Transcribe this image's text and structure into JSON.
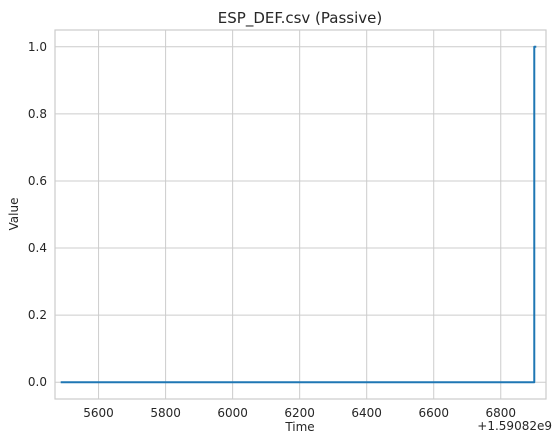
{
  "chart_data": {
    "type": "line",
    "title": "ESP_DEF.csv (Passive)",
    "xlabel": "Time",
    "ylabel": "Value",
    "x_offset_label": "+1.59082e9",
    "xlim": [
      5470,
      6935
    ],
    "ylim": [
      -0.05,
      1.05
    ],
    "xticks": [
      5600,
      5800,
      6000,
      6200,
      6400,
      6600,
      6800
    ],
    "xtick_labels": [
      "5600",
      "5800",
      "6000",
      "6200",
      "6400",
      "6600",
      "6800"
    ],
    "yticks": [
      0.0,
      0.2,
      0.4,
      0.6,
      0.8,
      1.0
    ],
    "ytick_labels": [
      "0.0",
      "0.2",
      "0.4",
      "0.6",
      "0.8",
      "1.0"
    ],
    "grid": true,
    "series": [
      {
        "color": "#1f77b4",
        "x": [
          5487,
          6900,
          6900,
          6906
        ],
        "y": [
          0.0,
          0.0,
          1.0,
          1.0
        ]
      }
    ]
  }
}
